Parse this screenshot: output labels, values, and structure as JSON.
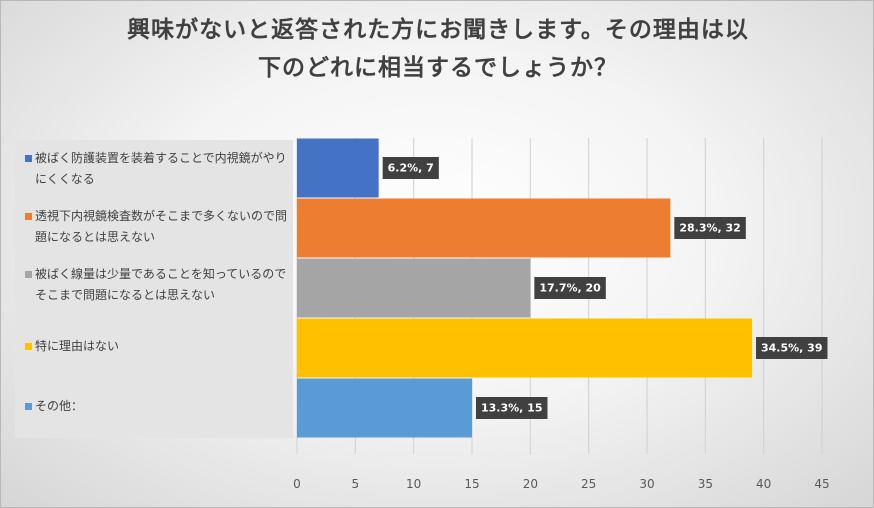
{
  "chart_data": {
    "type": "bar",
    "orientation": "horizontal",
    "title_lines": [
      "興味がないと返答された方にお聞きします。その理由は以",
      "下のどれに相当するでしょうか？"
    ],
    "categories": [
      "被ばく防護装置を装着することで内視鏡がやりにくくなる",
      "透視下内視鏡検査数がそこまで多くないので問題になるとは思えない",
      "被ばく線量は少量であることを知っているのでそこまで問題になるとは思えない",
      "特に理由はない",
      "その他："
    ],
    "values": [
      7,
      32,
      20,
      39,
      15
    ],
    "percentages": [
      "6.2%",
      "28.3%",
      "17.7%",
      "34.5%",
      "13.3%"
    ],
    "data_labels": [
      "6.2%, 7",
      "28.3%, 32",
      "17.7%, 20",
      "34.5%, 39",
      "13.3%, 15"
    ],
    "colors": [
      "#4472c4",
      "#ed7d31",
      "#a5a5a5",
      "#ffc000",
      "#5b9bd5"
    ],
    "xlim": [
      0,
      45
    ],
    "xticks": [
      0,
      5,
      10,
      15,
      20,
      25,
      30,
      35,
      40,
      45
    ],
    "xtick_labels": [
      "0",
      "5",
      "10",
      "15",
      "20",
      "25",
      "30",
      "35",
      "40",
      "45"
    ],
    "grid": "vertical",
    "legend_position": "left",
    "data_label_background": "#404040"
  }
}
